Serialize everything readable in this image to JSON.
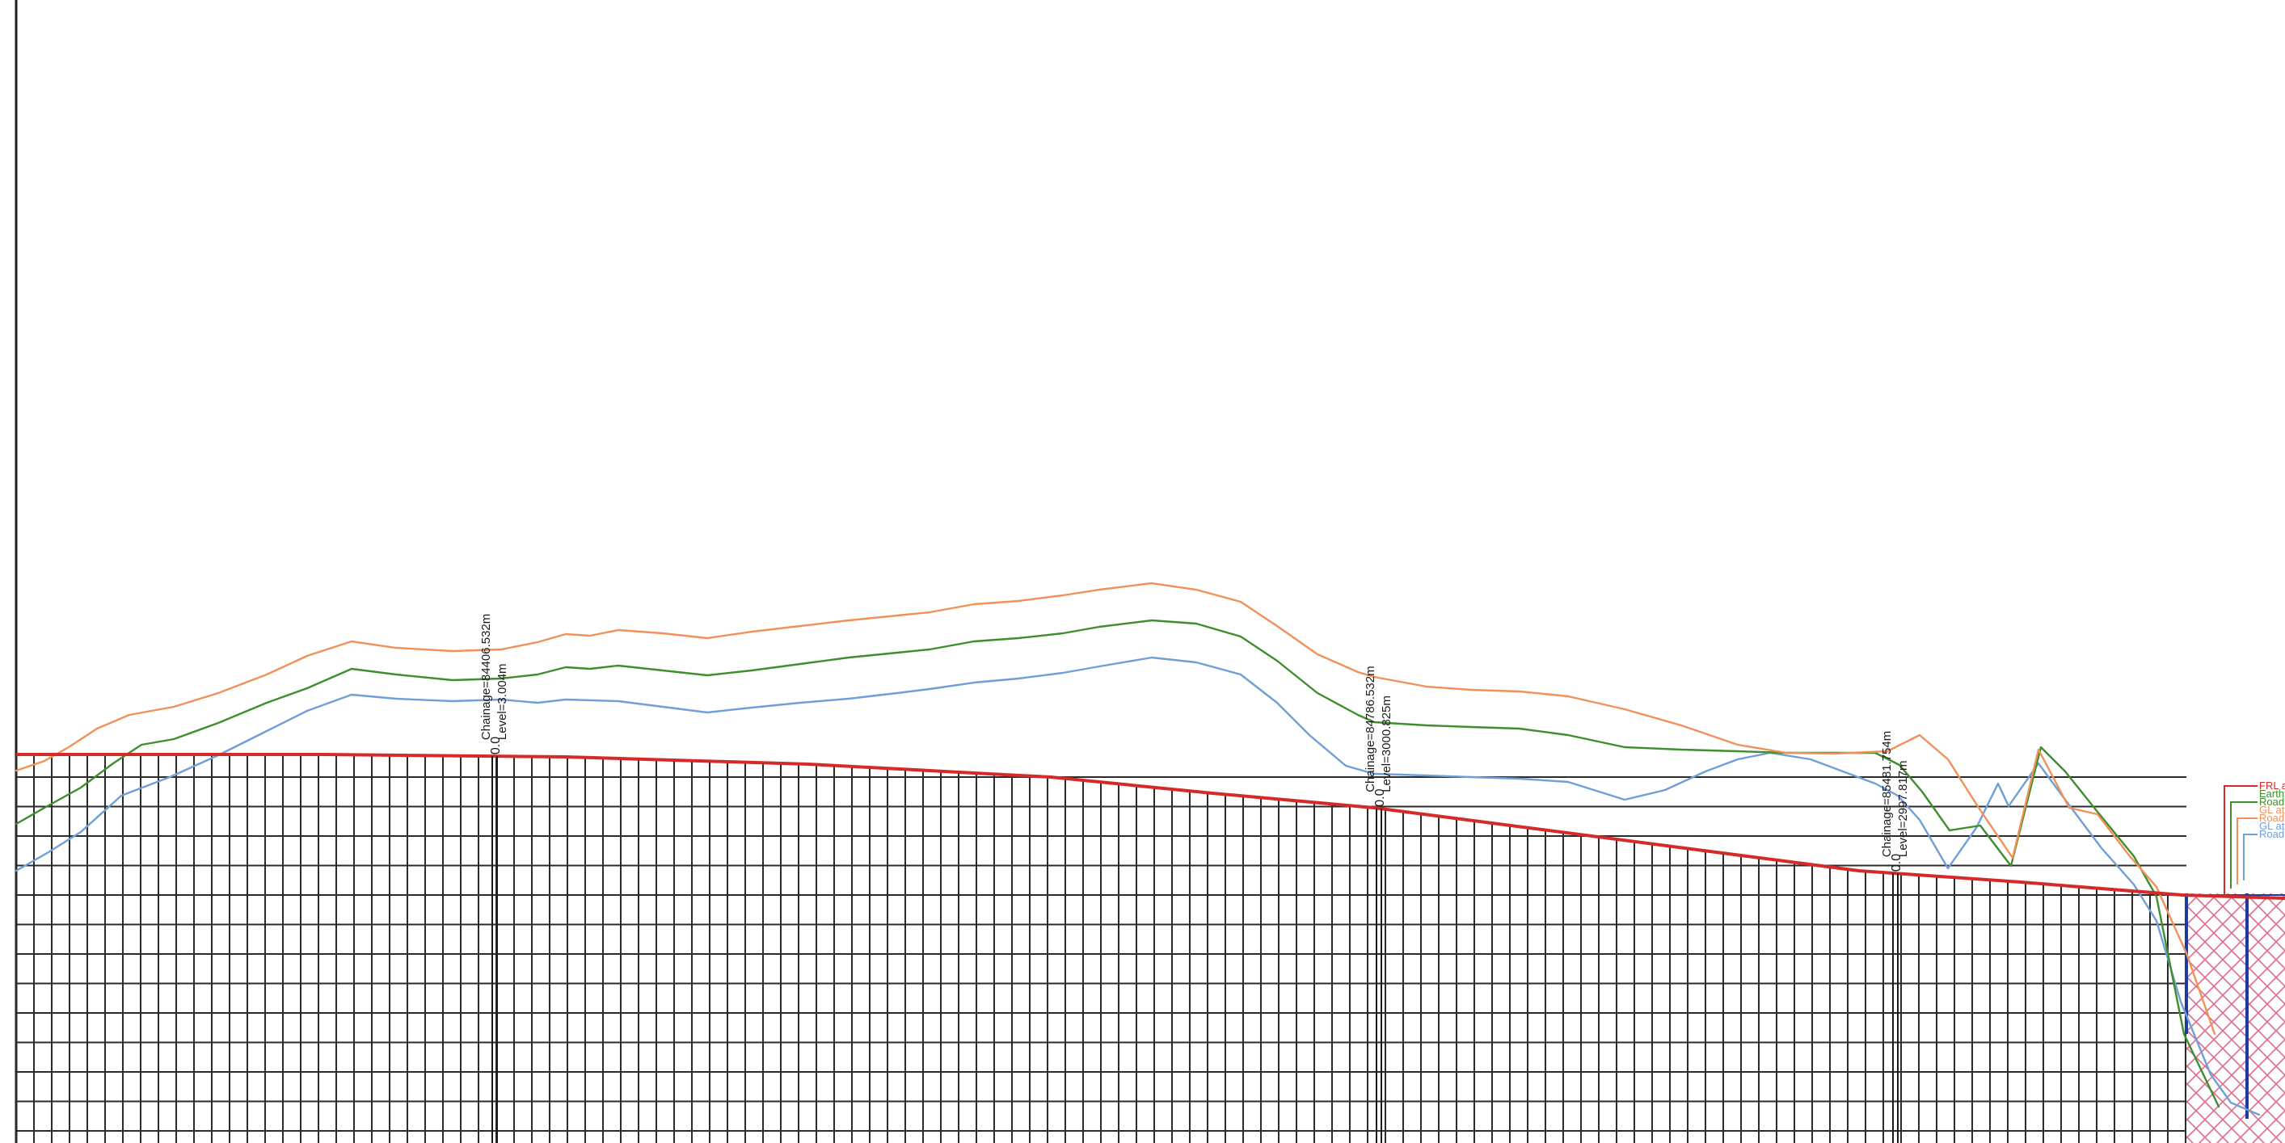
{
  "colors": {
    "frl": "#d42a2a",
    "earthfill": "#3e8e2e",
    "road_edge": "#f0915a",
    "natural_ground": "#6f9fd6",
    "grid": "#2b2b2b",
    "culvert": "#1f3a9e",
    "hatch": "#e06a8a"
  },
  "markers": [
    {
      "chainage": "Chainage=84406.532m",
      "level": "Level=3.004m",
      "zero": "0.0"
    },
    {
      "chainage": "Chainage=84786.532m",
      "level": "Level=3000.825m",
      "zero": "0.0"
    },
    {
      "chainage": "Chainage=85481.754m",
      "level": "Level=2997.817m",
      "zero": "0.0"
    }
  ],
  "legend": [
    {
      "label": "FRL at",
      "color": "#d42a2a"
    },
    {
      "label": "Earthfi",
      "color": "#3e8e2e"
    },
    {
      "label": "Road e",
      "color": "#3e8e2e"
    },
    {
      "label": "GL at",
      "color": "#f0915a"
    },
    {
      "label": "Road e",
      "color": "#f0915a"
    },
    {
      "label": "GL at",
      "color": "#6f9fd6"
    },
    {
      "label": "Road e",
      "color": "#6f9fd6"
    }
  ]
}
